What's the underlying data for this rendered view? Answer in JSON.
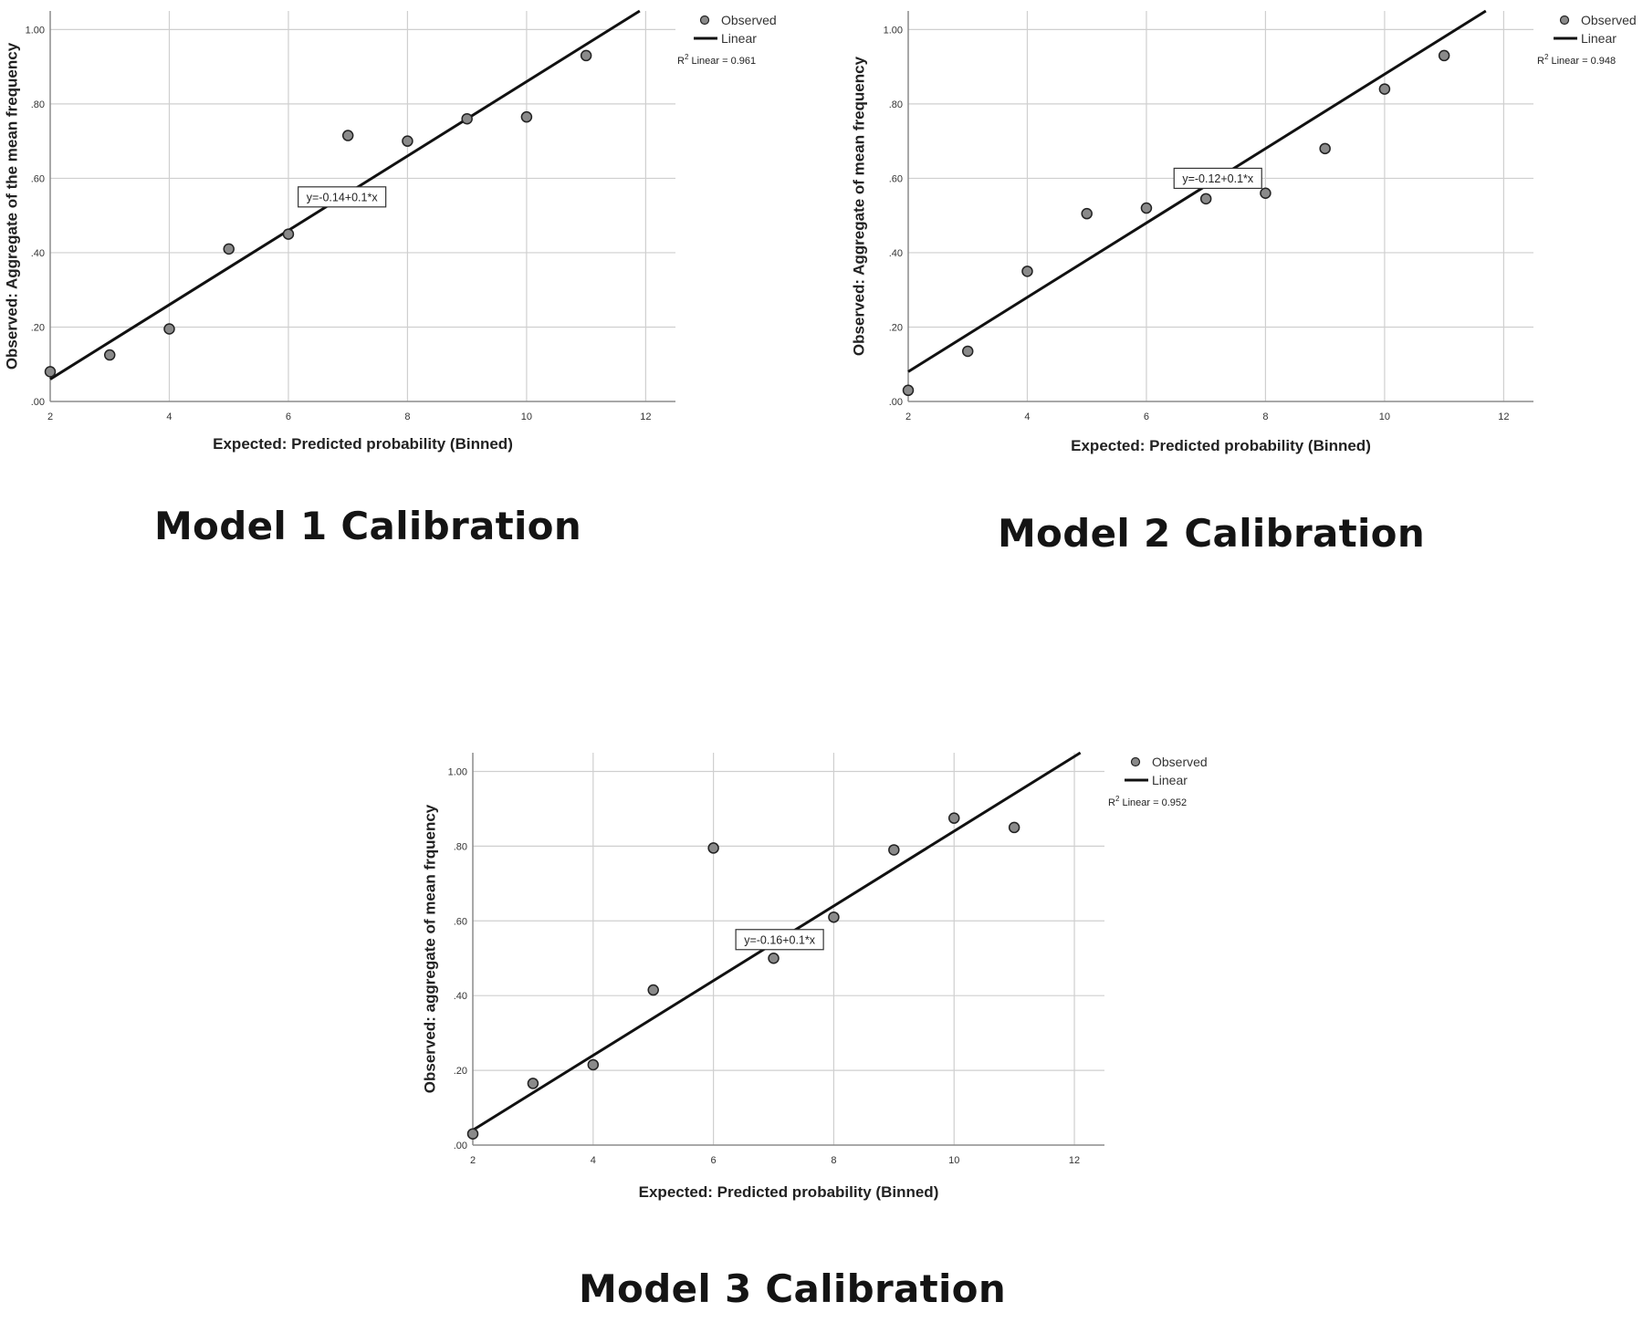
{
  "chart_data": [
    {
      "type": "scatter",
      "caption": "Model 1 Calibration",
      "xlabel": "Expected: Predicted probability (Binned)",
      "ylabel": "Observed: Aggregate of the mean frequency",
      "xlim": [
        2,
        12.5
      ],
      "ylim": [
        0,
        1.05
      ],
      "xticks": [
        2,
        4,
        6,
        8,
        10,
        12
      ],
      "yticks": [
        ".00",
        ".20",
        ".40",
        ".60",
        ".80",
        "1.00"
      ],
      "grid": true,
      "legend": {
        "position": "top-right",
        "entries": [
          "Observed",
          "Linear"
        ]
      },
      "r2_label": "Linear = 0.961",
      "equation_label": "y=-0.14+0.1*x",
      "series": [
        {
          "name": "Observed",
          "x": [
            2,
            3,
            4,
            5,
            6,
            7,
            8,
            9,
            10,
            11
          ],
          "y": [
            0.08,
            0.125,
            0.195,
            0.41,
            0.45,
            0.715,
            0.7,
            0.76,
            0.765,
            0.93
          ]
        }
      ],
      "fit": {
        "name": "Linear",
        "intercept": -0.14,
        "slope": 0.1
      }
    },
    {
      "type": "scatter",
      "caption": "Model 2 Calibration",
      "xlabel": "Expected: Predicted probability (Binned)",
      "ylabel": "Observed: Aggregate of mean frequency",
      "xlim": [
        2,
        12.5
      ],
      "ylim": [
        0,
        1.05
      ],
      "xticks": [
        2,
        4,
        6,
        8,
        10,
        12
      ],
      "yticks": [
        ".00",
        ".20",
        ".40",
        ".60",
        ".80",
        "1.00"
      ],
      "grid": true,
      "legend": {
        "position": "top-right",
        "entries": [
          "Observed",
          "Linear"
        ]
      },
      "r2_label": "Linear = 0.948",
      "equation_label": "y=-0.12+0.1*x",
      "series": [
        {
          "name": "Observed",
          "x": [
            2,
            3,
            4,
            5,
            6,
            7,
            8,
            9,
            10,
            11
          ],
          "y": [
            0.03,
            0.135,
            0.35,
            0.505,
            0.52,
            0.545,
            0.56,
            0.68,
            0.84,
            0.93
          ]
        }
      ],
      "fit": {
        "name": "Linear",
        "intercept": -0.12,
        "slope": 0.1
      }
    },
    {
      "type": "scatter",
      "caption": "Model 3 Calibration",
      "xlabel": "Expected: Predicted probability (Binned)",
      "ylabel": "Observed: aggregate of mean frquency",
      "xlim": [
        2,
        12.5
      ],
      "ylim": [
        0,
        1.05
      ],
      "xticks": [
        2,
        4,
        6,
        8,
        10,
        12
      ],
      "yticks": [
        ".00",
        ".20",
        ".40",
        ".60",
        ".80",
        "1.00"
      ],
      "grid": true,
      "legend": {
        "position": "top-right",
        "entries": [
          "Observed",
          "Linear"
        ]
      },
      "r2_label": "Linear = 0.952",
      "equation_label": "y=-0.16+0.1*x",
      "series": [
        {
          "name": "Observed",
          "x": [
            2,
            3,
            4,
            5,
            6,
            7,
            8,
            9,
            10,
            11
          ],
          "y": [
            0.03,
            0.165,
            0.215,
            0.415,
            0.795,
            0.5,
            0.61,
            0.79,
            0.875,
            0.85
          ]
        }
      ],
      "fit": {
        "name": "Linear",
        "intercept": -0.16,
        "slope": 0.1
      }
    }
  ],
  "colors": {
    "grid": "#cfcfcf",
    "axis": "#8c8c8c",
    "fit_line": "#111111",
    "point_fill": "#8a8a8a",
    "point_stroke": "#222222"
  }
}
